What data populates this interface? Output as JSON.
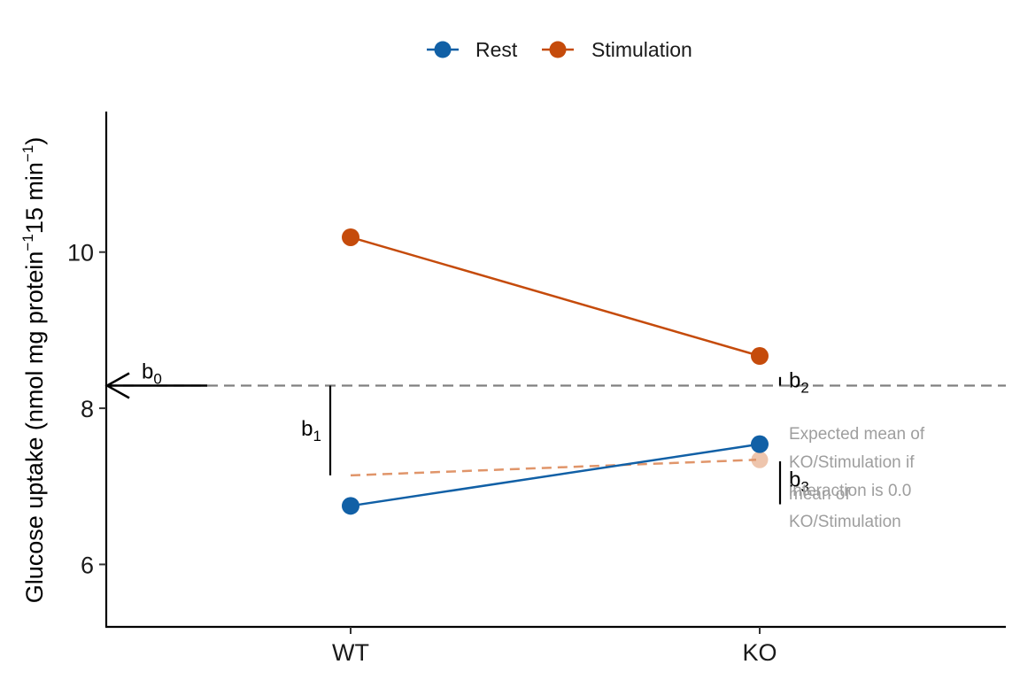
{
  "chart_data": {
    "type": "line",
    "categories": [
      "WT",
      "KO"
    ],
    "series": [
      {
        "name": "Rest",
        "values": [
          6.75,
          7.54
        ],
        "color": "#1160a6"
      },
      {
        "name": "Stimulation",
        "values": [
          10.19,
          8.67
        ],
        "color": "#c54b0b"
      }
    ],
    "ylim": [
      5.2,
      11.8
    ],
    "yticks": [
      6,
      8,
      10
    ],
    "ylabel": {
      "pre": "Glucose uptake (nmol mg protein",
      "sup1": "−1",
      "mid": "15 min",
      "sup2": "−1",
      "post": ")"
    },
    "legend_position": "top",
    "grid": false,
    "reference_line": {
      "y": 8.29,
      "color": "#808080"
    },
    "expected_line": {
      "x": [
        "WT",
        "KO"
      ],
      "values": [
        7.14,
        7.34
      ],
      "color": "#e0956a"
    },
    "annotations": {
      "b0": {
        "base": "b",
        "sub": "0"
      },
      "b1": {
        "base": "b",
        "sub": "1",
        "from": 8.29,
        "to": 7.14
      },
      "b2": {
        "base": "b",
        "sub": "2",
        "from": 8.29,
        "to": 8.4
      },
      "b3": {
        "base": "b",
        "sub": "3",
        "from": 7.32,
        "to": 6.77
      },
      "note1": [
        "Expected mean of",
        "KO/Stimulation if",
        "interaction is 0.0"
      ],
      "note2": [
        "mean of",
        "KO/Stimulation"
      ]
    }
  }
}
